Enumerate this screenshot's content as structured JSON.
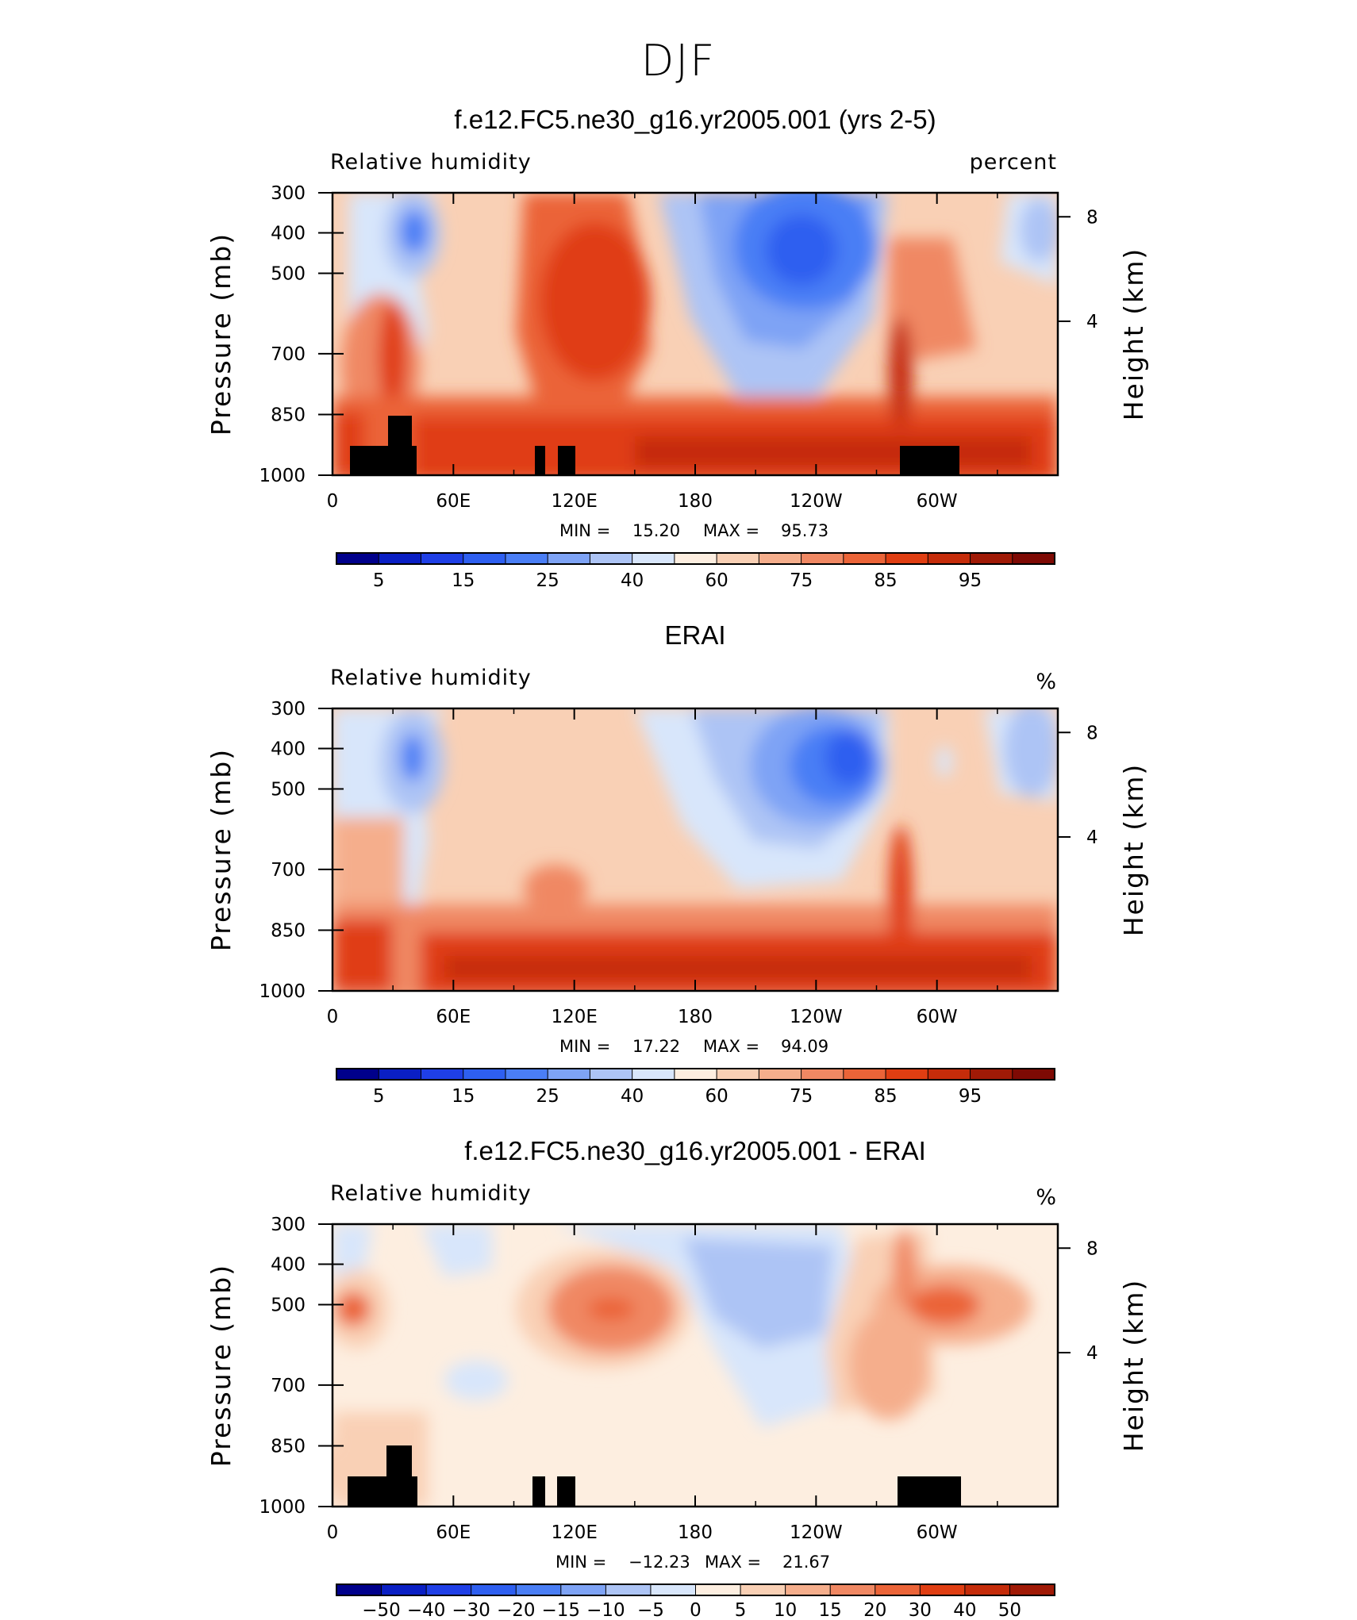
{
  "figure_title": "DJF",
  "chart_data": [
    {
      "type": "heatmap",
      "title": "f.e12.FC5.ne30_g16.yr2005.001 (yrs 2-5)",
      "left_label": "Relative humidity",
      "right_label": "percent",
      "ylabel": "Pressure (mb)",
      "y2label": "Height (km)",
      "x_ticks": [
        "0",
        "60E",
        "120E",
        "180",
        "120W",
        "60W"
      ],
      "y_ticks": [
        "300",
        "400",
        "500",
        "700",
        "850",
        "1000"
      ],
      "y2_ticks": [
        "8",
        "4"
      ],
      "min_label": "MIN =",
      "min_value": "15.20",
      "max_label": "MAX =",
      "max_value": "95.73",
      "colorbar": {
        "labels": [
          "5",
          "15",
          "25",
          "40",
          "60",
          "75",
          "85",
          "95"
        ],
        "colors": [
          "#00008b",
          "#0a1fc4",
          "#1f3fe6",
          "#2e5ff0",
          "#4a7ef5",
          "#7ea3f5",
          "#adc4f5",
          "#d8e6fb",
          "#fdeee0",
          "#f9d0b5",
          "#f5ae8c",
          "#f08863",
          "#eb6438",
          "#e03e12",
          "#c52c0a",
          "#a01a06",
          "#7e0a04"
        ]
      },
      "topography": true
    },
    {
      "type": "heatmap",
      "title": "ERAI",
      "left_label": "Relative humidity",
      "right_label": "%",
      "ylabel": "Pressure (mb)",
      "y2label": "Height (km)",
      "x_ticks": [
        "0",
        "60E",
        "120E",
        "180",
        "120W",
        "60W"
      ],
      "y_ticks": [
        "300",
        "400",
        "500",
        "700",
        "850",
        "1000"
      ],
      "y2_ticks": [
        "8",
        "4"
      ],
      "min_label": "MIN =",
      "min_value": "17.22",
      "max_label": "MAX =",
      "max_value": "94.09",
      "colorbar": {
        "labels": [
          "5",
          "15",
          "25",
          "40",
          "60",
          "75",
          "85",
          "95"
        ],
        "colors": [
          "#00008b",
          "#0a1fc4",
          "#1f3fe6",
          "#2e5ff0",
          "#4a7ef5",
          "#7ea3f5",
          "#adc4f5",
          "#d8e6fb",
          "#fdeee0",
          "#f9d0b5",
          "#f5ae8c",
          "#f08863",
          "#eb6438",
          "#e03e12",
          "#c52c0a",
          "#a01a06",
          "#7e0a04"
        ]
      },
      "topography": false
    },
    {
      "type": "heatmap",
      "title": "f.e12.FC5.ne30_g16.yr2005.001 - ERAI",
      "left_label": "Relative humidity",
      "right_label": "%",
      "ylabel": "Pressure (mb)",
      "y2label": "Height (km)",
      "x_ticks": [
        "0",
        "60E",
        "120E",
        "180",
        "120W",
        "60W"
      ],
      "y_ticks": [
        "300",
        "400",
        "500",
        "700",
        "850",
        "1000"
      ],
      "y2_ticks": [
        "8",
        "4"
      ],
      "min_label": "MIN =",
      "min_value": "−12.23",
      "max_label": "MAX =",
      "max_value": "21.67",
      "colorbar": {
        "labels": [
          "−50",
          "−40",
          "−30",
          "−20",
          "−15",
          "−10",
          "−5",
          "0",
          "5",
          "10",
          "15",
          "20",
          "30",
          "40",
          "50"
        ],
        "colors": [
          "#00008b",
          "#0a1fc4",
          "#1f3fe6",
          "#2e5ff0",
          "#4a7ef5",
          "#7ea3f5",
          "#adc4f5",
          "#d8e6fb",
          "#fdeee0",
          "#f9d0b5",
          "#f5ae8c",
          "#f08863",
          "#eb6438",
          "#e03e12",
          "#c52c0a",
          "#a01a06"
        ]
      },
      "topography": true
    }
  ]
}
